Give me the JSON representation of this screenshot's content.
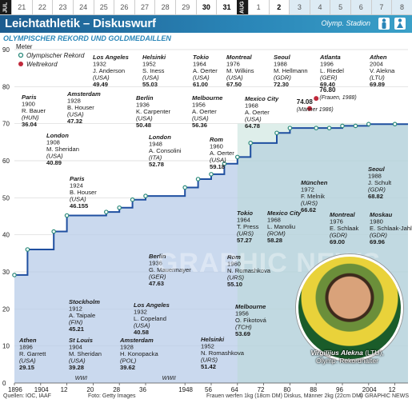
{
  "topbar": {
    "months": [
      "JUL",
      "AUG"
    ],
    "days": [
      "21",
      "22",
      "23",
      "24",
      "25",
      "26",
      "27",
      "28",
      "29",
      "30",
      "31",
      "1",
      "2",
      "3",
      "4",
      "5",
      "6",
      "7",
      "8"
    ],
    "bold_days": [
      "30",
      "31",
      "2"
    ]
  },
  "header": {
    "title": "Leichtathletik – Diskuswurf",
    "venue": "Olymp. Stadion",
    "subtitle": "OLYMPISCHER REKORD UND GOLDMEDAILLEN"
  },
  "colors": {
    "olympic_record": "#2a8a7a",
    "world_record": "#c0293b",
    "gold_line": "#1f4fa0",
    "fill_light": "#b8cce8",
    "fill_green": "#b6d9d0"
  },
  "chart_data": {
    "type": "line",
    "ylabel": "Meter",
    "ylim": [
      0,
      90
    ],
    "yticks": [
      0,
      10,
      20,
      30,
      40,
      50,
      60,
      70,
      80,
      90
    ],
    "xticks": [
      "1896",
      "1904",
      "12",
      "20",
      "28",
      "36",
      "1948",
      "56",
      "64",
      "72",
      "80",
      "88",
      "96",
      "2004",
      "12"
    ],
    "legend": [
      "Olympischer Rekord",
      "Weltrekord"
    ],
    "annotations": [
      "WWI",
      "WWII"
    ],
    "series": [
      {
        "name": "Olympischer Rekord",
        "x": [
          1896,
          1900,
          1908,
          1912,
          1924,
          1928,
          1932,
          1936,
          1948,
          1952,
          1956,
          1960,
          1964,
          1968,
          1976,
          1980,
          1988,
          1992,
          1996,
          2000,
          2004,
          2012
        ],
        "values": [
          29.15,
          36.04,
          40.89,
          45.21,
          46.155,
          47.32,
          49.49,
          50.48,
          52.78,
          55.03,
          56.36,
          59.18,
          61.0,
          64.78,
          67.5,
          68.82,
          68.82,
          68.82,
          69.4,
          69.4,
          69.89,
          69.89
        ]
      },
      {
        "name": "Weltrekord",
        "x": [
          1986,
          1988
        ],
        "values": [
          74.08,
          76.8
        ]
      }
    ],
    "top_labels": [
      {
        "venue": "Paris",
        "year": "1900",
        "name": "R. Bauer",
        "nat": "(HUN)",
        "mark": "36.04"
      },
      {
        "venue": "Amsterdam",
        "year": "1928",
        "name": "B. Houser",
        "nat": "(USA)",
        "mark": "47.32"
      },
      {
        "venue": "Los Angeles",
        "year": "1932",
        "name": "J. Anderson",
        "nat": "(USA)",
        "mark": "49.49"
      },
      {
        "venue": "Helsinki",
        "year": "1952",
        "name": "S. Iness",
        "nat": "(USA)",
        "mark": "55.03"
      },
      {
        "venue": "Tokio",
        "year": "1964",
        "name": "A. Oerter",
        "nat": "(USA)",
        "mark": "61.00"
      },
      {
        "venue": "Montreal",
        "year": "1976",
        "name": "M. Wilkins",
        "nat": "(USA)",
        "mark": "67.50"
      },
      {
        "venue": "Seoul",
        "year": "1988",
        "name": "M. Hellmann",
        "nat": "(GDR)",
        "mark": "72.30"
      },
      {
        "venue": "Atlanta",
        "year": "1996",
        "name": "L. Riedel",
        "nat": "(GER)",
        "mark": "69.40"
      },
      {
        "venue": "Athen",
        "year": "2004",
        "name": "V. Alekna",
        "nat": "(LTU)",
        "mark": "69.89"
      },
      {
        "venue": "London",
        "year": "1908",
        "name": "M. Sheridan",
        "nat": "(USA)",
        "mark": "40.89"
      },
      {
        "venue": "Berlin",
        "year": "1936",
        "name": "K. Carpenter",
        "nat": "(USA)",
        "mark": "50.48"
      },
      {
        "venue": "Melbourne",
        "year": "1956",
        "name": "A. Oerter",
        "nat": "(USA)",
        "mark": "56.36"
      },
      {
        "venue": "Mexico City",
        "year": "1968",
        "name": "A. Oerter",
        "nat": "(USA)",
        "mark": "64.78"
      },
      {
        "venue": "Paris",
        "year": "1924",
        "name": "B. Houser",
        "nat": "(USA)",
        "mark": "46.155"
      },
      {
        "venue": "London",
        "year": "1948",
        "name": "A. Consolini",
        "nat": "(ITA)",
        "mark": "52.78"
      },
      {
        "venue": "Rom",
        "year": "1960",
        "name": "A. Oerter",
        "nat": "(USA)",
        "mark": "59.18"
      }
    ],
    "world_record_labels": [
      {
        "mark": "74.08",
        "note": "(Männer 1986)"
      },
      {
        "mark": "76.80",
        "note": "(Frauen, 1988)"
      }
    ],
    "right_labels": [
      {
        "venue": "Seoul",
        "year": "1988",
        "name": "J. Schult",
        "nat": "(GDR)",
        "mark": "68.82"
      },
      {
        "venue": "München",
        "year": "1972",
        "name": "F. Melnik",
        "nat": "(URS)",
        "mark": "66.62"
      },
      {
        "venue": "Montreal",
        "year": "1976",
        "name": "E. Schlaak",
        "nat": "(GDR)",
        "mark": "69.00"
      },
      {
        "venue": "Moskau",
        "year": "1980",
        "name": "E. Schlaak-Jahl",
        "nat": "(GDR)",
        "mark": "69.96"
      },
      {
        "venue": "Tokio",
        "year": "1964",
        "name": "T. Press",
        "nat": "(URS)",
        "mark": "57.27"
      },
      {
        "venue": "Mexico City",
        "year": "1968",
        "name": "L. Manoliu",
        "nat": "(ROM)",
        "mark": "58.28"
      },
      {
        "venue": "Rom",
        "year": "1960",
        "name": "N. Romashkova",
        "nat": "(URS)",
        "mark": "55.10"
      }
    ],
    "bottom_labels": [
      {
        "venue": "Athen",
        "year": "1896",
        "name": "R. Garrett",
        "nat": "(USA)",
        "mark": "29.15"
      },
      {
        "venue": "St Louis",
        "year": "1904",
        "name": "M. Sheridan",
        "nat": "(USA)",
        "mark": "39.28"
      },
      {
        "venue": "Stockholm",
        "year": "1912",
        "name": "A. Taipale",
        "nat": "(FIN)",
        "mark": "45.21"
      },
      {
        "venue": "Amsterdam",
        "year": "1928",
        "name": "H. Konopacka",
        "nat": "(POL)",
        "mark": "39.62"
      },
      {
        "venue": "Los Angeles",
        "year": "1932",
        "name": "L. Copeland",
        "nat": "(USA)",
        "mark": "40.58"
      },
      {
        "venue": "Berlin",
        "year": "1936",
        "name": "G. Mauermayer",
        "nat": "(GER)",
        "mark": "47.63"
      },
      {
        "venue": "Helsinki",
        "year": "1952",
        "name": "N. Romashkova",
        "nat": "(URS)",
        "mark": "51.42"
      },
      {
        "venue": "Melbourne",
        "year": "1956",
        "name": "O. Fikotová",
        "nat": "(TCH)",
        "mark": "53.69"
      }
    ]
  },
  "photo": {
    "caption_name": "Virgilijus Alekna",
    "caption_nat": "(LTU),",
    "caption_role": "Olymp. Rekordhalter"
  },
  "watermark": "GRAPHIC NEWS",
  "footer": {
    "sources": "Quellen: IOC, IAAF",
    "photo_credit": "Foto: Getty Images",
    "note": "Frauen werfen 1kg (18cm DM) Diskus, Männer 2kg (22cm DM)",
    "copyright": "© GRAPHIC NEWS"
  }
}
